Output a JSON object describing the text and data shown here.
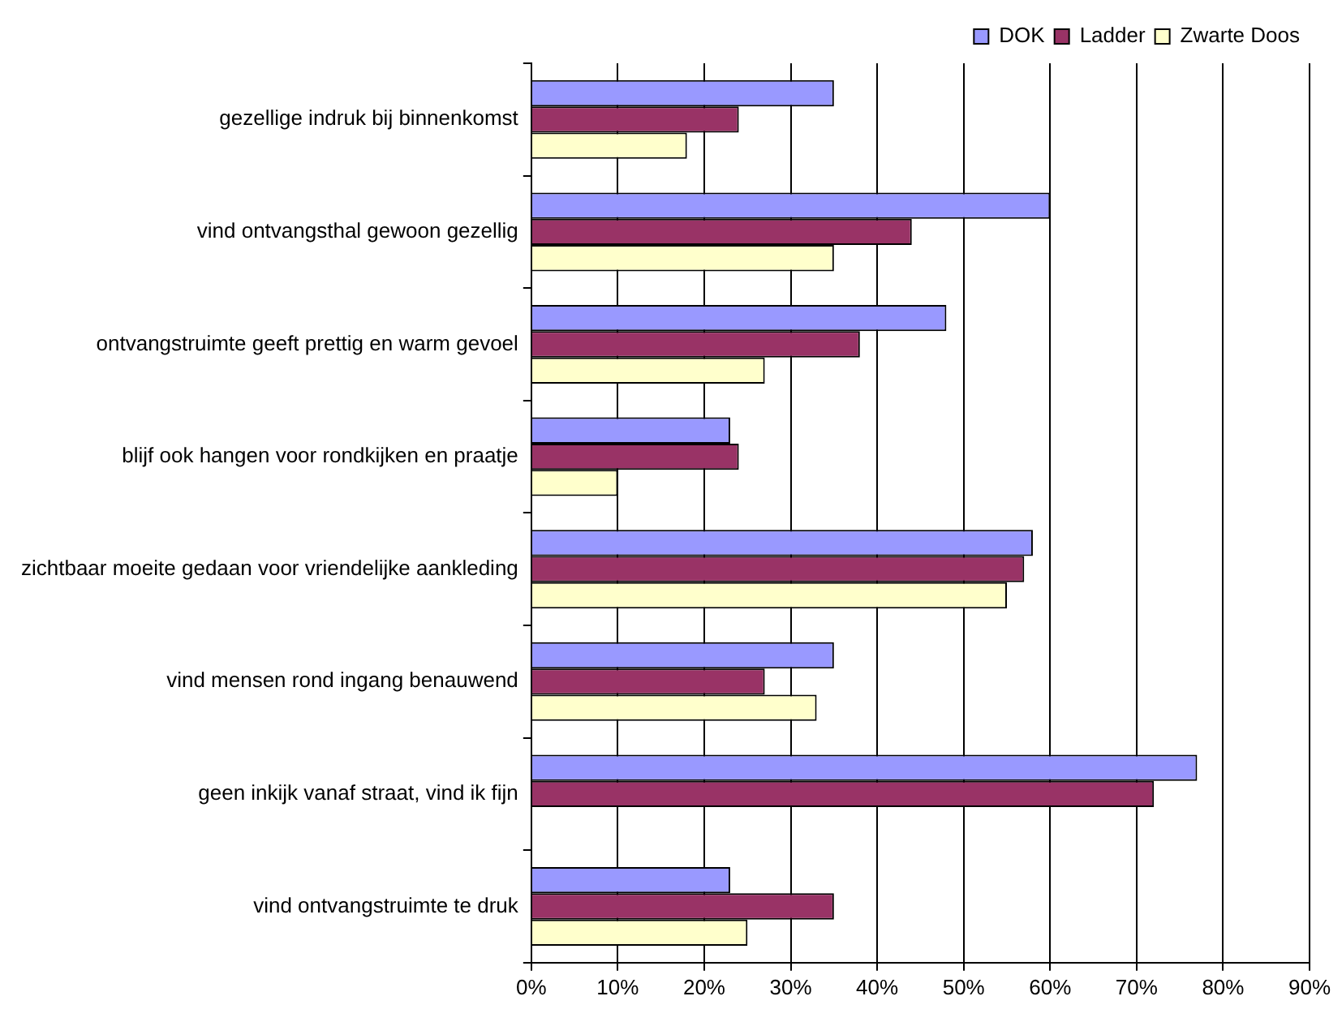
{
  "chart_data": {
    "type": "bar",
    "orientation": "horizontal",
    "categories": [
      "gezellige indruk bij binnenkomst",
      "vind ontvangsthal gewoon gezellig",
      "ontvangstruimte geeft prettig en warm gevoel",
      "blijf ook hangen voor rondkijken en praatje",
      "zichtbaar moeite gedaan voor vriendelijke aankleding",
      "vind mensen rond ingang benauwend",
      "geen inkijk vanaf straat, vind ik fijn",
      "vind ontvangstruimte te druk"
    ],
    "series": [
      {
        "name": "DOK",
        "color": "#9999ff",
        "values": [
          35,
          60,
          48,
          23,
          58,
          35,
          77,
          23
        ]
      },
      {
        "name": "Ladder",
        "color": "#993366",
        "values": [
          24,
          44,
          38,
          24,
          57,
          27,
          72,
          35
        ]
      },
      {
        "name": "Zwarte Doos",
        "color": "#ffffcc",
        "values": [
          18,
          35,
          27,
          10,
          55,
          33,
          null,
          25
        ]
      }
    ],
    "xlim": [
      0,
      90
    ],
    "xticks": [
      {
        "value": 0,
        "label": "0%"
      },
      {
        "value": 10,
        "label": "10%"
      },
      {
        "value": 20,
        "label": "20%"
      },
      {
        "value": 30,
        "label": "30%"
      },
      {
        "value": 40,
        "label": "40%"
      },
      {
        "value": 50,
        "label": "50%"
      },
      {
        "value": 60,
        "label": "60%"
      },
      {
        "value": 70,
        "label": "70%"
      },
      {
        "value": 80,
        "label": "80%"
      },
      {
        "value": 90,
        "label": "90%"
      }
    ],
    "grid": "x",
    "legend": "top right"
  }
}
